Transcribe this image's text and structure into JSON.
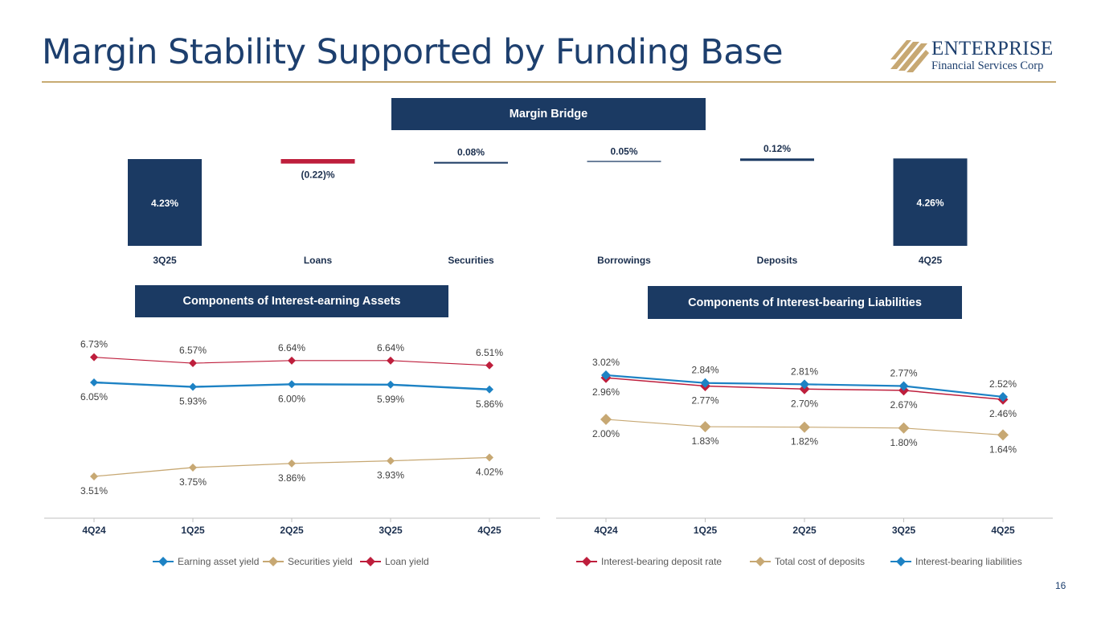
{
  "slide": {
    "title": "Margin Stability Supported by Funding Base",
    "page_number": "16"
  },
  "logo": {
    "name": "ENTERPRISE",
    "subtitle": "Financial Services Corp"
  },
  "colors": {
    "navy": "#1b3a63",
    "red": "#be1e3c",
    "gold": "#c7a873",
    "blue": "#1d82c4",
    "rule": "#c7ab72"
  },
  "chart_data": [
    {
      "type": "bar",
      "title": "Margin Bridge",
      "categories": [
        "3Q25",
        "Loans",
        "Securities",
        "Borrowings",
        "Deposits",
        "4Q25"
      ],
      "values": [
        4.23,
        -0.22,
        0.08,
        0.05,
        0.12,
        4.26
      ],
      "labels": [
        "4.23%",
        "(0.22)%",
        "0.08%",
        "0.05%",
        "0.12%",
        "4.26%"
      ],
      "kinds": [
        "total",
        "change",
        "change",
        "change",
        "change",
        "total"
      ]
    },
    {
      "type": "line",
      "title": "Components of Interest-earning Assets",
      "categories": [
        "4Q24",
        "1Q25",
        "2Q25",
        "3Q25",
        "4Q25"
      ],
      "series": [
        {
          "name": "Earning asset yield",
          "color": "#1d82c4",
          "values": [
            6.05,
            5.93,
            6.0,
            5.99,
            5.86
          ],
          "labels": [
            "6.05%",
            "5.93%",
            "6.00%",
            "5.99%",
            "5.86%"
          ]
        },
        {
          "name": "Securities yield",
          "color": "#c7a873",
          "values": [
            3.51,
            3.75,
            3.86,
            3.93,
            4.02
          ],
          "labels": [
            "3.51%",
            "3.75%",
            "3.86%",
            "3.93%",
            "4.02%"
          ]
        },
        {
          "name": "Loan yield",
          "color": "#be1e3c",
          "values": [
            6.73,
            6.57,
            6.64,
            6.64,
            6.51
          ],
          "labels": [
            "6.73%",
            "6.57%",
            "6.64%",
            "6.64%",
            "6.51%"
          ]
        }
      ]
    },
    {
      "type": "line",
      "title": "Components of Interest-bearing Liabilities",
      "categories": [
        "4Q24",
        "1Q25",
        "2Q25",
        "3Q25",
        "4Q25"
      ],
      "series": [
        {
          "name": "Interest-bearing deposit rate",
          "color": "#be1e3c",
          "values": [
            2.96,
            2.77,
            2.7,
            2.67,
            2.46
          ],
          "labels": [
            "2.96%",
            "2.77%",
            "2.70%",
            "2.67%",
            "2.46%"
          ]
        },
        {
          "name": "Total cost of deposits",
          "color": "#c7a873",
          "values": [
            2.0,
            1.83,
            1.82,
            1.8,
            1.64
          ],
          "labels": [
            "2.00%",
            "1.83%",
            "1.82%",
            "1.80%",
            "1.64%"
          ]
        },
        {
          "name": "Interest-bearing liabilities",
          "color": "#1d82c4",
          "values": [
            3.02,
            2.84,
            2.81,
            2.77,
            2.52
          ],
          "labels": [
            "3.02%",
            "2.84%",
            "2.81%",
            "2.77%",
            "2.52%"
          ]
        }
      ]
    }
  ]
}
